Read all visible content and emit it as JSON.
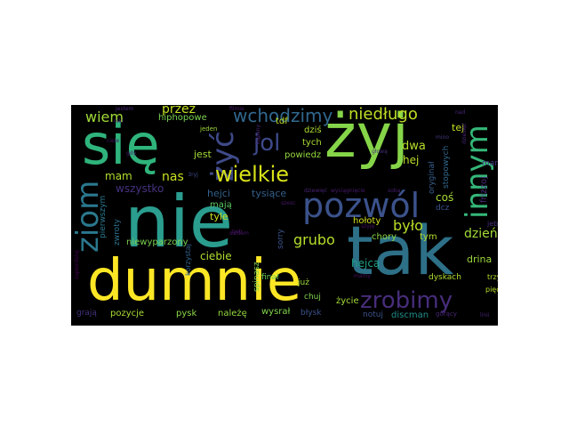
{
  "palette": {
    "background": "#000000",
    "yellow": "#fde725",
    "green": "#7ad151",
    "teal": "#22a884",
    "cyan": "#2a788e",
    "blue": "#414487",
    "purple": "#440154"
  },
  "words": [
    {
      "text": "nie",
      "color": "#2a9d8f"
    },
    {
      "text": "tak",
      "color": "#2d7088"
    },
    {
      "text": "dumnie",
      "color": "#fde725"
    },
    {
      "text": "żyj",
      "color": "#86d549"
    },
    {
      "text": "się",
      "color": "#2fb47c"
    },
    {
      "text": "pozwól",
      "color": "#3b528b"
    },
    {
      "text": "ziom",
      "color": "#2a788e"
    },
    {
      "text": "żyć",
      "color": "#3e4a89"
    },
    {
      "text": "innym",
      "color": "#35b779"
    },
    {
      "text": "zrobimy",
      "color": "#472d7b"
    },
    {
      "text": "wielkie",
      "color": "#d8e219"
    },
    {
      "text": "jol",
      "color": "#3e4989"
    },
    {
      "text": "wchodzimy",
      "color": "#31688e"
    },
    {
      "text": "niedługo",
      "color": "#bddf26"
    },
    {
      "text": "wiem",
      "color": "#a0da39"
    },
    {
      "text": "przez",
      "color": "#c2df23"
    },
    {
      "text": "nas",
      "color": "#c8e020"
    },
    {
      "text": "grubo",
      "color": "#b5de2b"
    },
    {
      "text": "było",
      "color": "#b8de29"
    },
    {
      "text": "dzień",
      "color": "#a2da37"
    },
    {
      "text": "mam",
      "color": "#b0dd2f"
    },
    {
      "text": "wszystko",
      "color": "#46327e"
    },
    {
      "text": "hiphopowe",
      "color": "#7ad151"
    },
    {
      "text": "jest",
      "color": "#a5db36"
    },
    {
      "text": "dwa",
      "color": "#b5de2b"
    },
    {
      "text": "hej",
      "color": "#bade28"
    },
    {
      "text": "dziś",
      "color": "#addc30"
    },
    {
      "text": "tych",
      "color": "#a8db34"
    },
    {
      "text": "powiedz",
      "color": "#95d840"
    },
    {
      "text": "tdf",
      "color": "#c0df25"
    },
    {
      "text": "tej",
      "color": "#c5e021"
    },
    {
      "text": "hejci",
      "color": "#34618d"
    },
    {
      "text": "tysiące",
      "color": "#35608d"
    },
    {
      "text": "mają",
      "color": "#5ec962"
    },
    {
      "text": "tyle",
      "color": "#cae11f"
    },
    {
      "text": "ciebie",
      "color": "#b0dd2f"
    },
    {
      "text": "chory",
      "color": "#8bd646"
    },
    {
      "text": "hołoty",
      "color": "#d2e21b"
    },
    {
      "text": "tym",
      "color": "#b5de2b"
    },
    {
      "text": "hejcą",
      "color": "#1fa088"
    },
    {
      "text": "drina",
      "color": "#9dd93b"
    },
    {
      "text": "życie",
      "color": "#a5db36"
    },
    {
      "text": "pozycje",
      "color": "#a8db34"
    },
    {
      "text": "pysk",
      "color": "#8bd646"
    },
    {
      "text": "należę",
      "color": "#95d840"
    },
    {
      "text": "wysrał",
      "color": "#7fd34e"
    },
    {
      "text": "błysk",
      "color": "#3b528b"
    },
    {
      "text": "notuj",
      "color": "#3b528b"
    },
    {
      "text": "discman",
      "color": "#21918c"
    },
    {
      "text": "gorący",
      "color": "#482475"
    },
    {
      "text": "finał",
      "color": "#6ece58"
    },
    {
      "text": "już",
      "color": "#9dd93b"
    },
    {
      "text": "niewyparzony",
      "color": "#7ad151"
    },
    {
      "text": "pierwszym",
      "color": "#2a788e"
    },
    {
      "text": "zwroty",
      "color": "#2c728e"
    },
    {
      "text": "sorry",
      "color": "#3a548c"
    },
    {
      "text": "coś",
      "color": "#a8db34"
    },
    {
      "text": "dcz",
      "color": "#3b528b"
    },
    {
      "text": "dyskach",
      "color": "#b0dd2f"
    },
    {
      "text": "oryginał",
      "color": "#355f8d"
    },
    {
      "text": "stopowych",
      "color": "#31688e"
    },
    {
      "text": "frizzoj",
      "color": "#472c7a"
    },
    {
      "text": "jeb",
      "color": "#46307e"
    },
    {
      "text": "pięć",
      "color": "#b8de29"
    },
    {
      "text": "trzy",
      "color": "#b5de2b"
    },
    {
      "text": "grają",
      "color": "#46327e"
    },
    {
      "text": "korzystaj",
      "color": "#33638d"
    },
    {
      "text": "spinasz",
      "color": "#7ad151"
    },
    {
      "text": "man",
      "color": "#443983"
    },
    {
      "text": "zapierdalaj",
      "color": "#440154"
    },
    {
      "text": "jestem",
      "color": "#482878"
    },
    {
      "text": "filmie",
      "color": "#481b6d"
    },
    {
      "text": "nad",
      "color": "#482677"
    },
    {
      "text": "mino",
      "color": "#453781"
    },
    {
      "text": "jeden",
      "color": "#9fda3a"
    },
    {
      "text": "chuj",
      "color": "#7fd34e"
    },
    {
      "text": "zjeb",
      "color": "#471164"
    },
    {
      "text": "żryj",
      "color": "#3e4a89"
    },
    {
      "text": "gdy",
      "color": "#482071"
    },
    {
      "text": "siedem",
      "color": "#48186a"
    },
    {
      "text": "szesc",
      "color": "#481769"
    },
    {
      "text": "dziewięć",
      "color": "#482475"
    },
    {
      "text": "szyję",
      "color": "#471365"
    },
    {
      "text": "wyciągnięcie",
      "color": "#481a6c"
    },
    {
      "text": "sobą",
      "color": "#481f70"
    },
    {
      "text": "linii",
      "color": "#482475"
    },
    {
      "text": "mamy",
      "color": "#471063"
    },
    {
      "text": "kąpany",
      "color": "#482878"
    },
    {
      "text": "głową",
      "color": "#472e7c"
    },
    {
      "text": "ciele",
      "color": "#471365"
    },
    {
      "text": "przyjazne",
      "color": "#2d708e"
    },
    {
      "text": "dziesięć",
      "color": "#482677"
    },
    {
      "text": "niki",
      "color": "#472a7a"
    }
  ]
}
